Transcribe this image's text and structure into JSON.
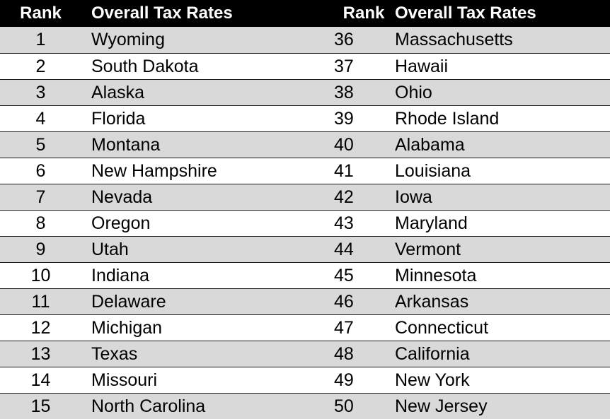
{
  "headers": {
    "rank": "Rank",
    "overall": "Overall Tax Rates"
  },
  "colors": {
    "header_bg": "#000000",
    "header_text": "#ffffff",
    "shaded_row": "#d9d9d9",
    "plain_row": "#ffffff"
  },
  "rows": [
    {
      "left_rank": "1",
      "left_state": "Wyoming",
      "right_rank": "36",
      "right_state": "Massachusetts"
    },
    {
      "left_rank": "2",
      "left_state": "South Dakota",
      "right_rank": "37",
      "right_state": "Hawaii"
    },
    {
      "left_rank": "3",
      "left_state": "Alaska",
      "right_rank": "38",
      "right_state": "Ohio"
    },
    {
      "left_rank": "4",
      "left_state": "Florida",
      "right_rank": "39",
      "right_state": "Rhode Island"
    },
    {
      "left_rank": "5",
      "left_state": "Montana",
      "right_rank": "40",
      "right_state": "Alabama"
    },
    {
      "left_rank": "6",
      "left_state": "New Hampshire",
      "right_rank": "41",
      "right_state": "Louisiana"
    },
    {
      "left_rank": "7",
      "left_state": "Nevada",
      "right_rank": "42",
      "right_state": "Iowa"
    },
    {
      "left_rank": "8",
      "left_state": "Oregon",
      "right_rank": "43",
      "right_state": "Maryland"
    },
    {
      "left_rank": "9",
      "left_state": "Utah",
      "right_rank": "44",
      "right_state": "Vermont"
    },
    {
      "left_rank": "10",
      "left_state": "Indiana",
      "right_rank": "45",
      "right_state": "Minnesota"
    },
    {
      "left_rank": "11",
      "left_state": "Delaware",
      "right_rank": "46",
      "right_state": "Arkansas"
    },
    {
      "left_rank": "12",
      "left_state": "Michigan",
      "right_rank": "47",
      "right_state": "Connecticut"
    },
    {
      "left_rank": "13",
      "left_state": "Texas",
      "right_rank": "48",
      "right_state": "California"
    },
    {
      "left_rank": "14",
      "left_state": "Missouri",
      "right_rank": "49",
      "right_state": "New York"
    },
    {
      "left_rank": "15",
      "left_state": "North Carolina",
      "right_rank": "50",
      "right_state": "New Jersey"
    }
  ]
}
